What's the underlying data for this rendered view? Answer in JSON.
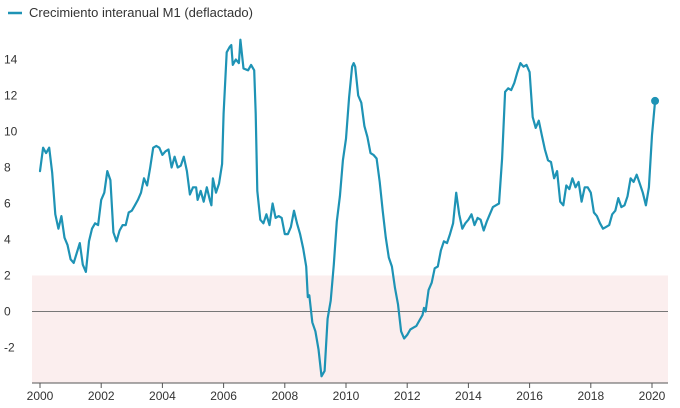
{
  "chart_data": {
    "type": "line",
    "title": "",
    "xlabel": "",
    "ylabel": "",
    "xlim": [
      2000,
      2020.6
    ],
    "ylim": [
      -3.8,
      15.4
    ],
    "legend": {
      "placement": "top-left",
      "label": "Crecimiento interanual M1 (deflactado)"
    },
    "x_ticks": [
      2000,
      2002,
      2004,
      2006,
      2008,
      2010,
      2012,
      2014,
      2016,
      2018,
      2020
    ],
    "y_ticks": [
      -2,
      0,
      2,
      4,
      6,
      8,
      10,
      12,
      14
    ],
    "y_tick_labels": [
      "-2",
      "0",
      "2",
      "4",
      "6",
      "8",
      "10",
      "12",
      "14"
    ],
    "band": {
      "from": -3.8,
      "to": 2,
      "color": "#fbeeee"
    },
    "zero_line": true,
    "grid": false,
    "colors": {
      "line": "#1e93b5",
      "axis": "#555555",
      "zero": "#777777",
      "band": "#fbeeee"
    },
    "series": [
      {
        "name": "Crecimiento interanual M1 (deflactado)",
        "end_marker": true,
        "points": [
          [
            2000.0,
            7.8
          ],
          [
            2000.1,
            9.1
          ],
          [
            2000.2,
            8.8
          ],
          [
            2000.3,
            9.1
          ],
          [
            2000.4,
            7.7
          ],
          [
            2000.5,
            5.4
          ],
          [
            2000.6,
            4.6
          ],
          [
            2000.7,
            5.3
          ],
          [
            2000.8,
            4.1
          ],
          [
            2000.9,
            3.7
          ],
          [
            2001.0,
            2.9
          ],
          [
            2001.1,
            2.7
          ],
          [
            2001.3,
            3.8
          ],
          [
            2001.4,
            2.6
          ],
          [
            2001.5,
            2.2
          ],
          [
            2001.6,
            3.9
          ],
          [
            2001.7,
            4.6
          ],
          [
            2001.8,
            4.9
          ],
          [
            2001.9,
            4.8
          ],
          [
            2002.0,
            6.2
          ],
          [
            2002.1,
            6.6
          ],
          [
            2002.2,
            7.8
          ],
          [
            2002.3,
            7.3
          ],
          [
            2002.4,
            4.4
          ],
          [
            2002.5,
            3.9
          ],
          [
            2002.6,
            4.5
          ],
          [
            2002.7,
            4.8
          ],
          [
            2002.8,
            4.8
          ],
          [
            2002.9,
            5.5
          ],
          [
            2003.0,
            5.6
          ],
          [
            2003.1,
            5.9
          ],
          [
            2003.2,
            6.2
          ],
          [
            2003.3,
            6.6
          ],
          [
            2003.4,
            7.4
          ],
          [
            2003.5,
            7.0
          ],
          [
            2003.6,
            8.0
          ],
          [
            2003.7,
            9.1
          ],
          [
            2003.8,
            9.2
          ],
          [
            2003.9,
            9.1
          ],
          [
            2004.0,
            8.7
          ],
          [
            2004.1,
            8.9
          ],
          [
            2004.2,
            9.0
          ],
          [
            2004.3,
            8.0
          ],
          [
            2004.4,
            8.6
          ],
          [
            2004.5,
            8.0
          ],
          [
            2004.6,
            8.1
          ],
          [
            2004.7,
            8.6
          ],
          [
            2004.8,
            7.8
          ],
          [
            2004.9,
            6.5
          ],
          [
            2005.0,
            6.9
          ],
          [
            2005.1,
            6.9
          ],
          [
            2005.15,
            6.2
          ],
          [
            2005.25,
            6.7
          ],
          [
            2005.35,
            6.1
          ],
          [
            2005.45,
            6.9
          ],
          [
            2005.55,
            6.2
          ],
          [
            2005.6,
            5.9
          ],
          [
            2005.65,
            7.4
          ],
          [
            2005.75,
            6.6
          ],
          [
            2005.85,
            7.1
          ],
          [
            2005.95,
            8.2
          ],
          [
            2006.0,
            11.0
          ],
          [
            2006.1,
            14.4
          ],
          [
            2006.2,
            14.7
          ],
          [
            2006.25,
            14.8
          ],
          [
            2006.3,
            13.7
          ],
          [
            2006.4,
            14.0
          ],
          [
            2006.5,
            13.8
          ],
          [
            2006.55,
            15.1
          ],
          [
            2006.65,
            13.5
          ],
          [
            2006.8,
            13.4
          ],
          [
            2006.9,
            13.7
          ],
          [
            2007.0,
            13.4
          ],
          [
            2007.05,
            11.0
          ],
          [
            2007.1,
            6.7
          ],
          [
            2007.2,
            5.1
          ],
          [
            2007.3,
            4.9
          ],
          [
            2007.4,
            5.4
          ],
          [
            2007.5,
            4.8
          ],
          [
            2007.6,
            6.0
          ],
          [
            2007.7,
            5.2
          ],
          [
            2007.8,
            5.3
          ],
          [
            2007.9,
            5.2
          ],
          [
            2008.0,
            4.3
          ],
          [
            2008.1,
            4.3
          ],
          [
            2008.2,
            4.7
          ],
          [
            2008.3,
            5.6
          ],
          [
            2008.4,
            4.9
          ],
          [
            2008.5,
            4.3
          ],
          [
            2008.6,
            3.5
          ],
          [
            2008.7,
            2.5
          ],
          [
            2008.75,
            0.8
          ],
          [
            2008.8,
            0.9
          ],
          [
            2008.9,
            -0.6
          ],
          [
            2009.0,
            -1.1
          ],
          [
            2009.1,
            -2.1
          ],
          [
            2009.2,
            -3.6
          ],
          [
            2009.3,
            -3.3
          ],
          [
            2009.4,
            -0.4
          ],
          [
            2009.5,
            0.6
          ],
          [
            2009.6,
            2.6
          ],
          [
            2009.7,
            5.0
          ],
          [
            2009.8,
            6.4
          ],
          [
            2009.9,
            8.4
          ],
          [
            2010.0,
            9.6
          ],
          [
            2010.1,
            11.9
          ],
          [
            2010.2,
            13.6
          ],
          [
            2010.25,
            13.8
          ],
          [
            2010.3,
            13.6
          ],
          [
            2010.4,
            12.0
          ],
          [
            2010.5,
            11.6
          ],
          [
            2010.6,
            10.3
          ],
          [
            2010.7,
            9.7
          ],
          [
            2010.8,
            8.8
          ],
          [
            2010.9,
            8.7
          ],
          [
            2011.0,
            8.5
          ],
          [
            2011.1,
            7.2
          ],
          [
            2011.2,
            5.6
          ],
          [
            2011.3,
            4.1
          ],
          [
            2011.4,
            3.0
          ],
          [
            2011.5,
            2.5
          ],
          [
            2011.6,
            1.3
          ],
          [
            2011.7,
            0.4
          ],
          [
            2011.8,
            -1.1
          ],
          [
            2011.9,
            -1.5
          ],
          [
            2012.0,
            -1.3
          ],
          [
            2012.1,
            -1.0
          ],
          [
            2012.2,
            -0.9
          ],
          [
            2012.3,
            -0.8
          ],
          [
            2012.4,
            -0.5
          ],
          [
            2012.5,
            -0.2
          ],
          [
            2012.55,
            0.2
          ],
          [
            2012.6,
            0.0
          ],
          [
            2012.7,
            1.2
          ],
          [
            2012.8,
            1.6
          ],
          [
            2012.9,
            2.4
          ],
          [
            2013.0,
            2.5
          ],
          [
            2013.1,
            3.4
          ],
          [
            2013.2,
            3.9
          ],
          [
            2013.3,
            3.8
          ],
          [
            2013.4,
            4.3
          ],
          [
            2013.5,
            4.9
          ],
          [
            2013.6,
            6.6
          ],
          [
            2013.7,
            5.4
          ],
          [
            2013.8,
            4.6
          ],
          [
            2013.9,
            4.9
          ],
          [
            2014.0,
            5.1
          ],
          [
            2014.1,
            5.4
          ],
          [
            2014.2,
            4.8
          ],
          [
            2014.3,
            5.2
          ],
          [
            2014.4,
            5.1
          ],
          [
            2014.5,
            4.5
          ],
          [
            2014.6,
            5.0
          ],
          [
            2014.7,
            5.4
          ],
          [
            2014.8,
            5.8
          ],
          [
            2014.9,
            5.9
          ],
          [
            2015.0,
            6.0
          ],
          [
            2015.1,
            8.5
          ],
          [
            2015.2,
            12.2
          ],
          [
            2015.3,
            12.4
          ],
          [
            2015.4,
            12.3
          ],
          [
            2015.5,
            12.7
          ],
          [
            2015.6,
            13.3
          ],
          [
            2015.7,
            13.8
          ],
          [
            2015.8,
            13.6
          ],
          [
            2015.9,
            13.7
          ],
          [
            2016.0,
            13.3
          ],
          [
            2016.1,
            10.8
          ],
          [
            2016.2,
            10.2
          ],
          [
            2016.3,
            10.6
          ],
          [
            2016.4,
            9.8
          ],
          [
            2016.5,
            9.0
          ],
          [
            2016.6,
            8.4
          ],
          [
            2016.7,
            8.3
          ],
          [
            2016.8,
            7.4
          ],
          [
            2016.9,
            7.8
          ],
          [
            2017.0,
            6.1
          ],
          [
            2017.1,
            5.9
          ],
          [
            2017.2,
            7.0
          ],
          [
            2017.3,
            6.8
          ],
          [
            2017.4,
            7.4
          ],
          [
            2017.5,
            6.9
          ],
          [
            2017.6,
            7.2
          ],
          [
            2017.7,
            6.1
          ],
          [
            2017.8,
            6.9
          ],
          [
            2017.9,
            6.9
          ],
          [
            2018.0,
            6.6
          ],
          [
            2018.1,
            5.5
          ],
          [
            2018.2,
            5.3
          ],
          [
            2018.3,
            4.9
          ],
          [
            2018.4,
            4.6
          ],
          [
            2018.5,
            4.7
          ],
          [
            2018.6,
            4.8
          ],
          [
            2018.7,
            5.4
          ],
          [
            2018.8,
            5.6
          ],
          [
            2018.9,
            6.3
          ],
          [
            2019.0,
            5.8
          ],
          [
            2019.1,
            5.9
          ],
          [
            2019.2,
            6.4
          ],
          [
            2019.3,
            7.4
          ],
          [
            2019.4,
            7.2
          ],
          [
            2019.5,
            7.6
          ],
          [
            2019.6,
            7.1
          ],
          [
            2019.7,
            6.6
          ],
          [
            2019.8,
            5.9
          ],
          [
            2019.9,
            6.9
          ],
          [
            2020.0,
            9.8
          ],
          [
            2020.1,
            11.7
          ]
        ]
      }
    ]
  }
}
